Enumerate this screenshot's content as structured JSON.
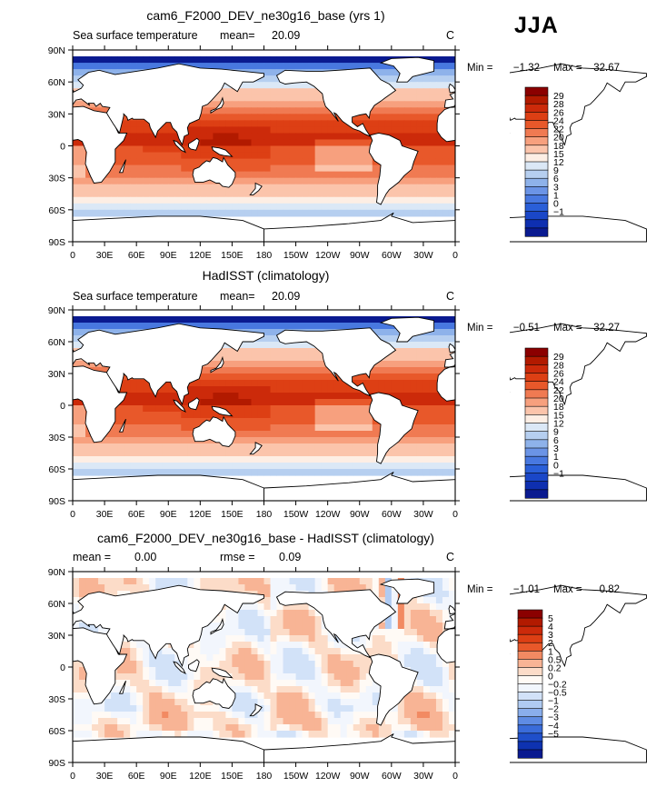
{
  "header": {
    "season": "JJA"
  },
  "chart_data": [
    {
      "type": "contour-map",
      "title": "cam6_F2000_DEV_ne30g16_base (yrs 1)",
      "variable": "Sea surface temperature",
      "mean_label": "mean=",
      "mean": "20.09",
      "units": "C",
      "min_label": "Min =",
      "min": "−1.32",
      "max_label": "Max =",
      "max": "32.67",
      "colorbar_levels": [
        "29",
        "28",
        "26",
        "24",
        "22",
        "20",
        "18",
        "15",
        "12",
        "9",
        "6",
        "3",
        "1",
        "0",
        "−1"
      ],
      "colorbar_colors": [
        "#8b0000",
        "#b21a00",
        "#cc2a0a",
        "#dd3f14",
        "#e8582a",
        "#f07a52",
        "#f7a07e",
        "#fbc4ab",
        "#fdeee4",
        "#dbe8f6",
        "#b6cff0",
        "#8eb2ea",
        "#6b94e6",
        "#4878e0",
        "#2a5fd8",
        "#1a47c8",
        "#0e2fb0",
        "#0a1a90"
      ]
    },
    {
      "type": "contour-map",
      "title": "HadISST (climatology)",
      "variable": "Sea surface temperature",
      "mean_label": "mean=",
      "mean": "20.09",
      "units": "C",
      "min_label": "Min =",
      "min": "−0.51",
      "max_label": "Max =",
      "max": "32.27",
      "colorbar_levels": [
        "29",
        "28",
        "26",
        "24",
        "22",
        "20",
        "18",
        "15",
        "12",
        "9",
        "6",
        "3",
        "1",
        "0",
        "−1"
      ],
      "colorbar_colors": [
        "#8b0000",
        "#b21a00",
        "#cc2a0a",
        "#dd3f14",
        "#e8582a",
        "#f07a52",
        "#f7a07e",
        "#fbc4ab",
        "#fdeee4",
        "#dbe8f6",
        "#b6cff0",
        "#8eb2ea",
        "#6b94e6",
        "#4878e0",
        "#2a5fd8",
        "#1a47c8",
        "#0e2fb0",
        "#0a1a90"
      ]
    },
    {
      "type": "contour-map",
      "title": "cam6_F2000_DEV_ne30g16_base - HadISST (climatology)",
      "mean_label": "mean =",
      "mean": "0.00",
      "rmse_label": "rmse =",
      "rmse": "0.09",
      "units": "C",
      "min_label": "Min =",
      "min": "−1.01",
      "max_label": "Max =",
      "max": "0.82",
      "colorbar_levels": [
        "5",
        "4",
        "3",
        "2",
        "1",
        "0.5",
        "0.2",
        "0",
        "−0.2",
        "−0.5",
        "−1",
        "−2",
        "−3",
        "−4",
        "−5"
      ],
      "colorbar_colors": [
        "#8b0000",
        "#b21a00",
        "#cc2a0a",
        "#dd3f14",
        "#e8582a",
        "#f28a62",
        "#f8b495",
        "#fcdcc8",
        "#fffaf5",
        "#f2f6fd",
        "#d2e2f8",
        "#b0cbf2",
        "#8aaeec",
        "#5f8ce4",
        "#3a6cda",
        "#1f4fca",
        "#0e32b0",
        "#0a1a90"
      ]
    }
  ],
  "axes": {
    "x_ticks": [
      "0",
      "30E",
      "60E",
      "90E",
      "120E",
      "150E",
      "180",
      "150W",
      "120W",
      "90W",
      "60W",
      "30W",
      "0"
    ],
    "y_ticks": [
      "90N",
      "60N",
      "30N",
      "0",
      "30S",
      "60S",
      "90S"
    ]
  }
}
